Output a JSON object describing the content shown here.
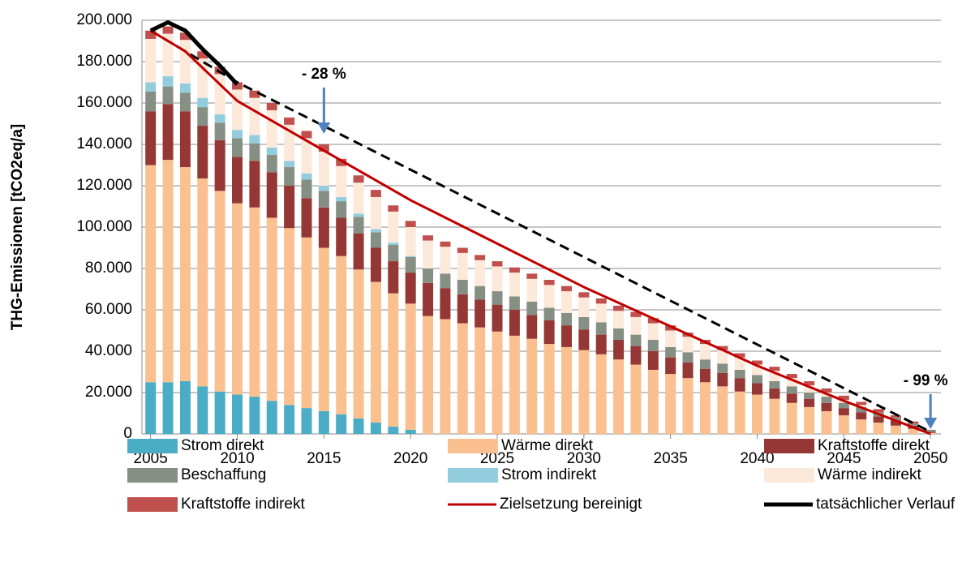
{
  "chart_data": {
    "type": "stacked_bar",
    "ylabel": "THG-Emissionen [tCO2eq/a]",
    "xlim": [
      2004.5,
      2050.6
    ],
    "ylim": [
      0,
      200000
    ],
    "xticks": [
      2005,
      2010,
      2015,
      2020,
      2025,
      2030,
      2035,
      2040,
      2045,
      2050
    ],
    "yticks": [
      0,
      {
        "value": 20000,
        "label": "20.000"
      },
      {
        "value": 40000,
        "label": "40.000"
      },
      {
        "value": 60000,
        "label": "60.000"
      },
      {
        "value": 80000,
        "label": "80.000"
      },
      {
        "value": 100000,
        "label": "100.000"
      },
      {
        "value": 120000,
        "label": "120.000"
      },
      {
        "value": 140000,
        "label": "140.000"
      },
      {
        "value": 160000,
        "label": "160.000"
      },
      {
        "value": 180000,
        "label": "180.000"
      },
      {
        "value": 200000,
        "label": "200.000"
      }
    ],
    "grid": true,
    "x": [
      2005,
      2006,
      2007,
      2008,
      2009,
      2010,
      2011,
      2012,
      2013,
      2014,
      2015,
      2016,
      2017,
      2018,
      2019,
      2020,
      2021,
      2022,
      2023,
      2024,
      2025,
      2026,
      2027,
      2028,
      2029,
      2030,
      2031,
      2032,
      2033,
      2034,
      2035,
      2036,
      2037,
      2038,
      2039,
      2040,
      2041,
      2042,
      2043,
      2044,
      2045,
      2046,
      2047,
      2048,
      2049,
      2050
    ],
    "series": [
      {
        "name": "Strom direkt",
        "color": "#4bacc6",
        "values": [
          25000,
          25000,
          25500,
          23000,
          20500,
          19000,
          18000,
          16000,
          14000,
          12500,
          11000,
          9500,
          7500,
          5500,
          3500,
          2000,
          0,
          0,
          0,
          0,
          0,
          0,
          0,
          0,
          0,
          0,
          0,
          0,
          0,
          0,
          0,
          0,
          0,
          0,
          0,
          0,
          0,
          0,
          0,
          0,
          0,
          0,
          0,
          0,
          0,
          0
        ]
      },
      {
        "name": "Wärme direkt",
        "color": "#fac090",
        "values": [
          105000,
          107500,
          103500,
          100500,
          97000,
          92500,
          91500,
          88500,
          85500,
          82500,
          79000,
          76500,
          72000,
          68000,
          64500,
          61000,
          57000,
          55500,
          53500,
          51500,
          49500,
          47500,
          46000,
          43500,
          42000,
          40500,
          38500,
          36000,
          33500,
          31000,
          29000,
          27000,
          25000,
          23000,
          20500,
          19000,
          17000,
          15000,
          13000,
          11000,
          9000,
          7000,
          5500,
          4000,
          2500,
          500
        ]
      },
      {
        "name": "Kraftstoffe direkt",
        "color": "#953735",
        "values": [
          26000,
          27000,
          27000,
          25500,
          24500,
          22500,
          22500,
          22000,
          20500,
          19000,
          19500,
          18500,
          17500,
          16500,
          15500,
          15000,
          16000,
          15000,
          14000,
          13500,
          13000,
          12500,
          11500,
          11500,
          10500,
          10000,
          9500,
          9500,
          9000,
          9000,
          8000,
          7500,
          6500,
          6500,
          6500,
          5500,
          5000,
          4500,
          4000,
          4000,
          3500,
          3500,
          3000,
          2500,
          1500,
          500
        ]
      },
      {
        "name": "Beschaffung",
        "color": "#868f84",
        "values": [
          9500,
          8500,
          9000,
          9000,
          8500,
          9000,
          8500,
          8500,
          9000,
          9000,
          8000,
          8000,
          8000,
          7500,
          8000,
          7500,
          7000,
          7000,
          7000,
          6500,
          6500,
          6500,
          6500,
          6000,
          6000,
          6000,
          6000,
          5500,
          5500,
          5500,
          5000,
          5000,
          4500,
          4500,
          4000,
          4000,
          3500,
          3500,
          3000,
          3000,
          2500,
          2500,
          2000,
          1500,
          1000,
          1000
        ]
      },
      {
        "name": "Strom indirekt",
        "color": "#93cddd",
        "values": [
          4500,
          5000,
          4500,
          4500,
          4000,
          4000,
          4000,
          3500,
          3000,
          3000,
          2500,
          2000,
          1500,
          1500,
          1000,
          500,
          0,
          0,
          0,
          0,
          0,
          0,
          0,
          0,
          0,
          0,
          0,
          0,
          0,
          0,
          0,
          0,
          0,
          0,
          0,
          0,
          0,
          0,
          0,
          0,
          0,
          0,
          0,
          0,
          0,
          0
        ]
      },
      {
        "name": "Wärme indirekt",
        "color": "#fde9d9",
        "values": [
          21000,
          20500,
          21000,
          19000,
          19500,
          19500,
          18000,
          18000,
          17500,
          17000,
          16500,
          15000,
          15000,
          15500,
          15000,
          14000,
          13500,
          13000,
          13000,
          12500,
          12000,
          11500,
          11000,
          11000,
          10500,
          9500,
          9000,
          8500,
          8500,
          8000,
          8000,
          7500,
          7500,
          6500,
          6000,
          5000,
          5000,
          4000,
          3500,
          2000,
          1500,
          1000,
          0,
          0,
          0,
          0
        ]
      },
      {
        "name": "Kraftstoffe indirekt",
        "color": "#c0504d",
        "values": [
          4000,
          3500,
          3500,
          3500,
          3500,
          3500,
          3500,
          3500,
          3500,
          3500,
          3500,
          3500,
          3500,
          3500,
          3000,
          3000,
          2500,
          2500,
          2500,
          2500,
          2500,
          2500,
          2500,
          2500,
          2500,
          2500,
          2500,
          2500,
          2500,
          2500,
          2500,
          2000,
          2000,
          2000,
          2000,
          2000,
          2000,
          2000,
          2000,
          2000,
          2000,
          1500,
          1500,
          1000,
          1000,
          0
        ]
      }
    ],
    "lines": [
      {
        "color": "#000000",
        "dashed": true,
        "x": [
          2005,
          2010,
          2050
        ],
        "values": [
          195000,
          170000,
          1000
        ]
      },
      {
        "name": "Zielsetzung bereinigt",
        "color": "#c00000",
        "width": 3,
        "x": [
          2005,
          2007,
          2010,
          2015,
          2020,
          2025,
          2030,
          2035,
          2040,
          2045,
          2050
        ],
        "values": [
          195000,
          185000,
          161000,
          137000,
          113000,
          92000,
          71000,
          52000,
          33000,
          16000,
          0
        ]
      },
      {
        "name": "tatsächlicher Verlauf",
        "color": "#000000",
        "width": 5,
        "x": [
          2005,
          2006,
          2007,
          2008,
          2009,
          2010
        ],
        "values": [
          195000,
          199000,
          195000,
          186000,
          178000,
          169000
        ]
      }
    ],
    "annotations": [
      {
        "text": "- 28 %",
        "x": 2015
      },
      {
        "text": "- 99 %",
        "x": 2050
      }
    ]
  }
}
